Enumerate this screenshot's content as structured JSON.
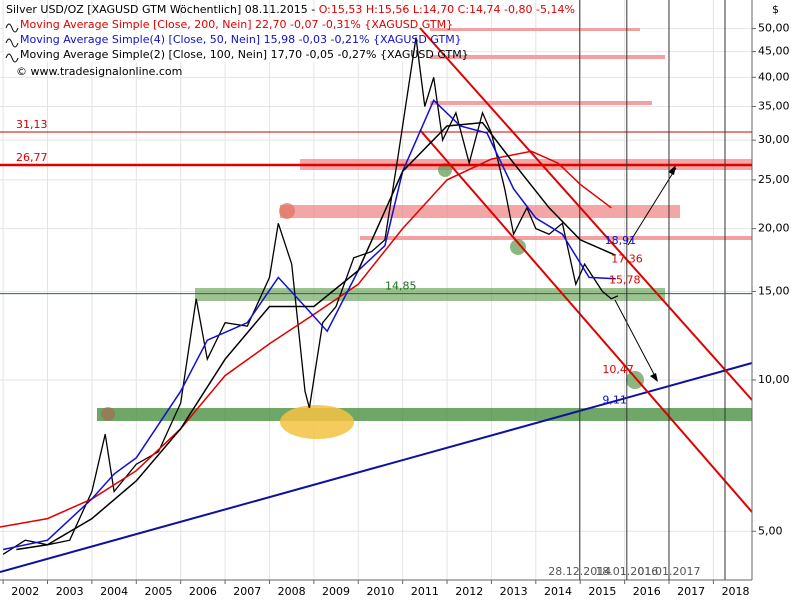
{
  "chart_data": {
    "type": "line",
    "title": "Silver USD/OZ [XAGUSD GTM  Wöchentlich] 08.11.2015 -",
    "quote": "O:15,53 H:15,56 L:14,70 C:14,74 -0,80 -5,14%",
    "credit": "© www.tradesignalonline.com",
    "y_axis_label": "$",
    "log_y": true,
    "grid": true,
    "xlim": [
      2001.93,
      2018.87
    ],
    "xticks": [
      2002,
      2003,
      2004,
      2005,
      2006,
      2007,
      2008,
      2009,
      2010,
      2011,
      2012,
      2013,
      2014,
      2015,
      2016,
      2017,
      2018
    ],
    "ylim": [
      4.0,
      57
    ],
    "yticks": [
      {
        "value": 5,
        "label": "5,00"
      },
      {
        "value": 10,
        "label": "10,00"
      },
      {
        "value": 15,
        "label": "15,00"
      },
      {
        "value": 20,
        "label": "20,00"
      },
      {
        "value": 25,
        "label": "25,00"
      },
      {
        "value": 30,
        "label": "30,00"
      },
      {
        "value": 35,
        "label": "35,00"
      },
      {
        "value": 40,
        "label": "40,00"
      },
      {
        "value": 45,
        "label": "45,00"
      },
      {
        "value": 50,
        "label": "50,00"
      }
    ],
    "series": [
      {
        "name": "Silver USD/OZ [XAGUSD GTM  Wöchentlich]",
        "color": "#000000",
        "x": [
          2002.0,
          2002.5,
          2003.0,
          2003.5,
          2004.0,
          2004.3,
          2004.5,
          2005.0,
          2005.5,
          2006.0,
          2006.35,
          2006.6,
          2007.0,
          2007.5,
          2008.0,
          2008.2,
          2008.5,
          2008.8,
          2008.9,
          2009.2,
          2009.5,
          2009.9,
          2010.3,
          2010.6,
          2010.9,
          2011.3,
          2011.5,
          2011.7,
          2011.9,
          2012.2,
          2012.5,
          2012.8,
          2013.0,
          2013.3,
          2013.5,
          2013.8,
          2014.0,
          2014.3,
          2014.6,
          2014.9,
          2015.1,
          2015.5,
          2015.7,
          2015.85
        ],
        "values": [
          4.5,
          4.8,
          4.7,
          4.8,
          6.0,
          7.8,
          6.0,
          6.8,
          7.2,
          9.0,
          14.5,
          11.0,
          13.0,
          12.8,
          16,
          20.5,
          17,
          9.5,
          8.8,
          13,
          14,
          17.5,
          18,
          19,
          28,
          48,
          35,
          40,
          30,
          34,
          27,
          34,
          31,
          24,
          19.5,
          22,
          20,
          19.5,
          20.5,
          15.5,
          17,
          15,
          14.5,
          14.7
        ]
      },
      {
        "name": "Moving Average Simple [Close, 200, Nein] 22,70 -0,07 -0,31% {XAGUSD GTM}",
        "color": "#e00000",
        "x": [
          2001.93,
          2003,
          2004,
          2005,
          2006,
          2007,
          2008,
          2009,
          2010,
          2011,
          2012,
          2013,
          2013.9,
          2014.5,
          2015,
          2015.7
        ],
        "values": [
          5.1,
          5.3,
          5.8,
          6.6,
          8.0,
          10.2,
          11.8,
          13.5,
          15.5,
          20,
          25,
          27.5,
          28.5,
          27,
          24.5,
          22
        ]
      },
      {
        "name": "Moving Average Simple(4) [Close, 50, Nein] 15,98 -0,03 -0,21% {XAGUSD GTM}",
        "color": "#1010d0",
        "x": [
          2002,
          2003,
          2004,
          2004.5,
          2005,
          2006,
          2006.6,
          2007.5,
          2008.2,
          2008.8,
          2009.3,
          2010,
          2010.6,
          2011,
          2011.7,
          2012.3,
          2012.9,
          2013.5,
          2014,
          2014.6,
          2015.2,
          2015.8
        ],
        "values": [
          4.6,
          4.8,
          5.8,
          6.5,
          7.0,
          9.5,
          12,
          13,
          16,
          14,
          12.5,
          16.5,
          18.5,
          26,
          36,
          32,
          31,
          24,
          21,
          19.5,
          16,
          15.9
        ]
      },
      {
        "name": "Moving Average Simple(2) [Close, 100, Nein] 17,70 -0,05 -0,27% {XAGUSD GTM}",
        "color": "#000000",
        "x": [
          2002.3,
          2003,
          2004,
          2005,
          2006,
          2007,
          2008,
          2009,
          2010,
          2011,
          2012,
          2012.8,
          2013.5,
          2014.3,
          2015,
          2015.8
        ],
        "values": [
          4.6,
          4.7,
          5.3,
          6.3,
          8.0,
          11,
          14,
          14,
          16.5,
          26,
          32,
          32.5,
          27,
          22,
          19,
          17.7
        ]
      }
    ],
    "levels": [
      {
        "value": 31.13,
        "label": "31,13",
        "color": "#d00000"
      },
      {
        "value": 26.77,
        "label": "26,77",
        "color": "#e00000"
      },
      {
        "value": 14.85,
        "label": "14,85",
        "color": "#207020"
      }
    ],
    "annotations": [
      {
        "text": "18,91",
        "x": 2015.55,
        "y": 18.91,
        "color": "#1010d0"
      },
      {
        "text": "17,36",
        "x": 2015.7,
        "y": 17.36,
        "color": "#e00000"
      },
      {
        "text": "15,78",
        "x": 2015.65,
        "y": 15.78,
        "color": "#e00000"
      },
      {
        "text": "10,47",
        "x": 2015.5,
        "y": 10.47,
        "color": "#e00000"
      },
      {
        "text": "9,11",
        "x": 2015.5,
        "y": 9.11,
        "color": "#1010d0"
      }
    ],
    "date_markers": [
      {
        "x": 2014.99,
        "label": "28.12.2014"
      },
      {
        "x": 2016.05,
        "label": "18.01.2016"
      },
      {
        "x": 2017.0,
        "label": "01.01.2017"
      }
    ]
  }
}
